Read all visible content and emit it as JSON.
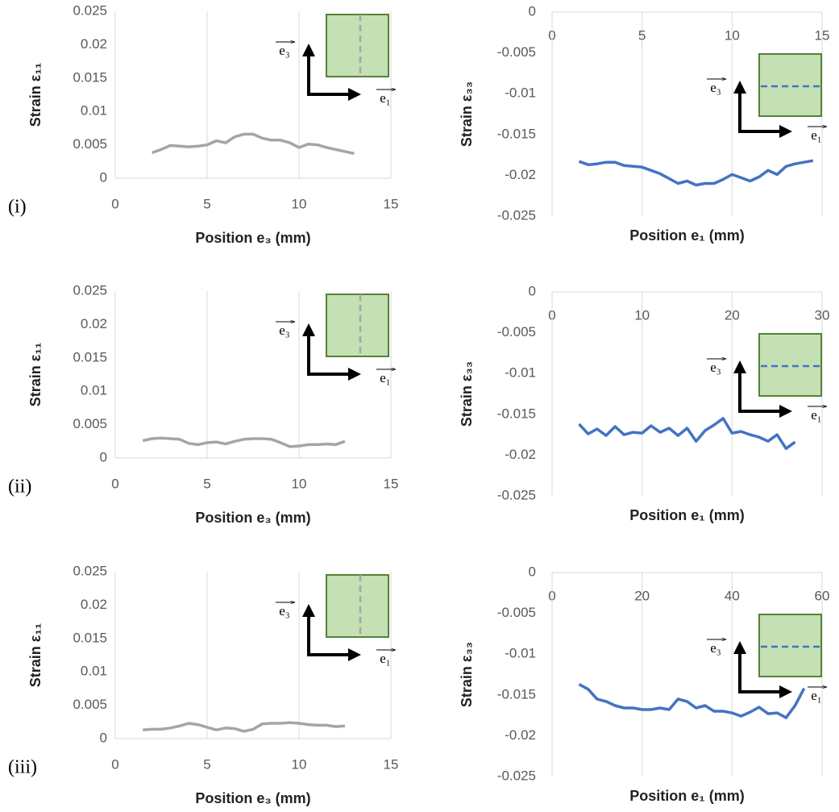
{
  "chart_data": [
    {
      "type": "line",
      "panel_label": "(i)",
      "y_label": "Strain ε₁₁",
      "x_label": "Position e₃ (mm)",
      "x_axis_position": "bottom",
      "grid": "x",
      "inset": "vertical",
      "annotations": [
        "e₃",
        "e₁"
      ],
      "xlim": [
        0,
        15
      ],
      "xticks": [
        0,
        5,
        10,
        15
      ],
      "ylim": [
        0,
        0.025
      ],
      "yticks": [
        0,
        0.005,
        0.01,
        0.015,
        0.02,
        0.025
      ],
      "x": [
        2,
        2.5,
        3,
        3.5,
        4,
        4.5,
        5,
        5.5,
        6,
        6.5,
        7,
        7.5,
        8,
        8.5,
        9,
        9.5,
        10,
        10.5,
        11,
        11.5,
        12,
        12.5,
        13
      ],
      "series": [
        {
          "color": "#a5a5a5",
          "values": [
            0.0038,
            0.0043,
            0.0049,
            0.0048,
            0.0047,
            0.0048,
            0.005,
            0.0056,
            0.0053,
            0.0062,
            0.0066,
            0.0066,
            0.006,
            0.0057,
            0.0057,
            0.0053,
            0.0046,
            0.0051,
            0.005,
            0.0046,
            0.0043,
            0.004,
            0.0037
          ]
        }
      ]
    },
    {
      "type": "line",
      "y_label": "Strain ε₃₃",
      "x_label": "Position e₁ (mm)",
      "x_axis_position": "top",
      "grid": "x",
      "inset": "horizontal",
      "annotations": [
        "e₃",
        "e₁"
      ],
      "xlim": [
        0,
        15
      ],
      "xticks": [
        0,
        5,
        10,
        15
      ],
      "ylim": [
        -0.025,
        0
      ],
      "yticks": [
        0,
        -0.005,
        -0.01,
        -0.015,
        -0.02,
        -0.025
      ],
      "x": [
        1.5,
        2,
        2.5,
        3,
        3.5,
        4,
        4.5,
        5,
        5.5,
        6,
        6.5,
        7,
        7.5,
        8,
        8.5,
        9,
        9.5,
        10,
        10.5,
        11,
        11.5,
        12,
        12.5,
        13,
        13.5,
        14,
        14.5
      ],
      "series": [
        {
          "color": "#4472c4",
          "values": [
            -0.0183,
            -0.0187,
            -0.0186,
            -0.0184,
            -0.0184,
            -0.0188,
            -0.0189,
            -0.019,
            -0.0194,
            -0.0198,
            -0.0204,
            -0.021,
            -0.0207,
            -0.0212,
            -0.021,
            -0.021,
            -0.0205,
            -0.0199,
            -0.0203,
            -0.0207,
            -0.0202,
            -0.0194,
            -0.0199,
            -0.0189,
            -0.0186,
            -0.0184,
            -0.0182
          ]
        }
      ]
    },
    {
      "type": "line",
      "panel_label": "(ii)",
      "y_label": "Strain ε₁₁",
      "x_label": "Position e₃ (mm)",
      "x_axis_position": "bottom",
      "grid": "x",
      "inset": "vertical",
      "annotations": [
        "e₃",
        "e₁"
      ],
      "xlim": [
        0,
        15
      ],
      "xticks": [
        0,
        5,
        10,
        15
      ],
      "ylim": [
        0,
        0.025
      ],
      "yticks": [
        0,
        0.005,
        0.01,
        0.015,
        0.02,
        0.025
      ],
      "x": [
        1.5,
        2,
        2.5,
        3,
        3.5,
        4,
        4.5,
        5,
        5.5,
        6,
        6.5,
        7,
        7.5,
        8,
        8.5,
        9,
        9.5,
        10,
        10.5,
        11,
        11.5,
        12,
        12.5
      ],
      "series": [
        {
          "color": "#a5a5a5",
          "values": [
            0.0026,
            0.0029,
            0.003,
            0.0029,
            0.0028,
            0.0022,
            0.002,
            0.0023,
            0.0024,
            0.0021,
            0.0025,
            0.0028,
            0.0029,
            0.0029,
            0.0028,
            0.0023,
            0.0017,
            0.0018,
            0.002,
            0.002,
            0.0021,
            0.002,
            0.0025
          ]
        }
      ]
    },
    {
      "type": "line",
      "y_label": "Strain ε₃₃",
      "x_label": "Position e₁ (mm)",
      "x_axis_position": "top",
      "grid": "x",
      "inset": "horizontal",
      "annotations": [
        "e₃",
        "e₁"
      ],
      "xlim": [
        0,
        30
      ],
      "xticks": [
        0,
        10,
        20,
        30
      ],
      "ylim": [
        -0.025,
        0
      ],
      "yticks": [
        0,
        -0.005,
        -0.01,
        -0.015,
        -0.02,
        -0.025
      ],
      "x": [
        3,
        4,
        5,
        6,
        7,
        8,
        9,
        10,
        11,
        12,
        13,
        14,
        15,
        16,
        17,
        18,
        19,
        20,
        21,
        22,
        23,
        24,
        25,
        26,
        27
      ],
      "series": [
        {
          "color": "#4472c4",
          "values": [
            -0.0162,
            -0.0174,
            -0.0168,
            -0.0176,
            -0.0165,
            -0.0175,
            -0.0172,
            -0.0173,
            -0.0164,
            -0.0172,
            -0.0167,
            -0.0176,
            -0.0167,
            -0.0183,
            -0.017,
            -0.0163,
            -0.0155,
            -0.0173,
            -0.0171,
            -0.0175,
            -0.0178,
            -0.0183,
            -0.0175,
            -0.0192,
            -0.0184
          ]
        }
      ]
    },
    {
      "type": "line",
      "panel_label": "(iii)",
      "y_label": "Strain ε₁₁",
      "x_label": "Position e₃ (mm)",
      "x_axis_position": "bottom",
      "grid": "x",
      "inset": "vertical",
      "annotations": [
        "e₃",
        "e₁"
      ],
      "xlim": [
        0,
        15
      ],
      "xticks": [
        0,
        5,
        10,
        15
      ],
      "ylim": [
        0,
        0.025
      ],
      "yticks": [
        0,
        0.005,
        0.01,
        0.015,
        0.02,
        0.025
      ],
      "x": [
        1.5,
        2,
        2.5,
        3,
        3.5,
        4,
        4.5,
        5,
        5.5,
        6,
        6.5,
        7,
        7.5,
        8,
        8.5,
        9,
        9.5,
        10,
        10.5,
        11,
        11.5,
        12,
        12.5
      ],
      "series": [
        {
          "color": "#a5a5a5",
          "values": [
            0.0013,
            0.0014,
            0.0014,
            0.0016,
            0.0019,
            0.0023,
            0.0021,
            0.0017,
            0.0013,
            0.0016,
            0.0015,
            0.0011,
            0.0014,
            0.0022,
            0.0023,
            0.0023,
            0.0024,
            0.0023,
            0.0021,
            0.002,
            0.002,
            0.0018,
            0.0019
          ]
        }
      ]
    },
    {
      "type": "line",
      "y_label": "Strain ε₃₃",
      "x_label": "Position e₁ (mm)",
      "x_axis_position": "top",
      "grid": "x",
      "inset": "horizontal",
      "annotations": [
        "e₃",
        "e₁"
      ],
      "xlim": [
        0,
        60
      ],
      "xticks": [
        0,
        20,
        40,
        60
      ],
      "ylim": [
        -0.025,
        0
      ],
      "yticks": [
        0,
        -0.005,
        -0.01,
        -0.015,
        -0.02,
        -0.025
      ],
      "x": [
        6,
        8,
        10,
        12,
        14,
        16,
        18,
        20,
        22,
        24,
        26,
        28,
        30,
        32,
        34,
        36,
        38,
        40,
        42,
        44,
        46,
        48,
        50,
        52,
        54,
        56
      ],
      "series": [
        {
          "color": "#4472c4",
          "values": [
            -0.0137,
            -0.0143,
            -0.0155,
            -0.0158,
            -0.0163,
            -0.0166,
            -0.0166,
            -0.0168,
            -0.0168,
            -0.0166,
            -0.0168,
            -0.0155,
            -0.0158,
            -0.0166,
            -0.0163,
            -0.017,
            -0.017,
            -0.0172,
            -0.0176,
            -0.0171,
            -0.0165,
            -0.0173,
            -0.0172,
            -0.0178,
            -0.0163,
            -0.0142
          ]
        }
      ]
    }
  ]
}
